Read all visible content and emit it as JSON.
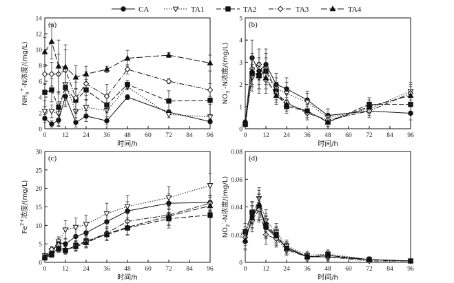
{
  "legend": [
    {
      "name": "CA",
      "marker": "circle",
      "fill": "#111111",
      "dash": ""
    },
    {
      "name": "TA1",
      "marker": "triangle-down",
      "fill": "#ffffff",
      "dash": "1.5,2"
    },
    {
      "name": "TA2",
      "marker": "square",
      "fill": "#111111",
      "dash": "7,3"
    },
    {
      "name": "TA3",
      "marker": "diamond",
      "fill": "#ffffff",
      "dash": "7,2,1.5,2"
    },
    {
      "name": "TA4",
      "marker": "triangle-up",
      "fill": "#111111",
      "dash": "9,3"
    }
  ],
  "chart_data": [
    {
      "type": "line",
      "panel_label": "(a)",
      "xlabel": "时间/h",
      "ylabel": "NH4+-N浓度/(mg/L)",
      "ylabel_parts": {
        "a": "NH",
        "sub": "4",
        "sup": "+",
        "b": "-N浓度/(mg/L)"
      },
      "xlim": [
        0,
        96
      ],
      "ylim": [
        0,
        14
      ],
      "xticks": [
        0,
        12,
        24,
        36,
        48,
        60,
        72,
        84,
        96
      ],
      "yticks": [
        0,
        2,
        4,
        6,
        8,
        10,
        12,
        14
      ],
      "x": [
        0,
        4,
        8,
        12,
        18,
        24,
        36,
        48,
        72,
        96
      ],
      "series": [
        {
          "name": "CA",
          "values": [
            1.3,
            0.6,
            1.1,
            4.1,
            0.8,
            1.6,
            1.0,
            4.0,
            2.1,
            0.9
          ],
          "err": [
            0.5,
            0.4,
            0.8,
            1.3,
            0.6,
            0.7,
            0.5,
            0.3,
            0.3,
            0.2
          ]
        },
        {
          "name": "TA1",
          "values": [
            2.2,
            2.2,
            1.9,
            5.6,
            2.2,
            2.7,
            2.3,
            5.3,
            1.8,
            1.5
          ],
          "err": [
            0.6,
            0.8,
            1.5,
            2.0,
            1.2,
            1.0,
            0.8,
            0.4,
            0.4,
            0.3
          ]
        },
        {
          "name": "TA2",
          "values": [
            4.6,
            4.9,
            2.7,
            5.2,
            3.6,
            4.9,
            3.0,
            5.6,
            3.5,
            3.6
          ],
          "err": [
            1.0,
            1.5,
            2.0,
            2.2,
            1.5,
            1.3,
            1.0,
            0.5,
            1.3,
            0.5
          ]
        },
        {
          "name": "TA3",
          "values": [
            6.9,
            6.9,
            6.9,
            7.4,
            3.9,
            5.7,
            4.1,
            7.5,
            6.0,
            4.9
          ],
          "err": [
            1.2,
            1.5,
            2.5,
            2.6,
            2.0,
            1.5,
            1.5,
            0.6,
            0.3,
            0.8
          ]
        },
        {
          "name": "TA4",
          "values": [
            9.7,
            11.0,
            7.9,
            7.8,
            6.5,
            6.9,
            7.5,
            8.9,
            9.3,
            8.3
          ],
          "err": [
            1.8,
            2.2,
            3.3,
            2.8,
            1.5,
            1.0,
            0.4,
            1.0,
            0.3,
            1.0
          ]
        }
      ]
    },
    {
      "type": "line",
      "panel_label": "(b)",
      "xlabel": "时间/h",
      "ylabel": "NO3--N浓度/(mg/L)",
      "ylabel_parts": {
        "a": "NO",
        "sub": "3",
        "sup": "-",
        "b": "-N浓度/(mg/L)"
      },
      "xlim": [
        0,
        96
      ],
      "ylim": [
        0,
        5
      ],
      "xticks": [
        0,
        12,
        24,
        36,
        48,
        60,
        72,
        84,
        96
      ],
      "yticks": [
        0,
        1,
        2,
        3,
        4,
        5
      ],
      "x": [
        0,
        4,
        8,
        12,
        18,
        24,
        36,
        48,
        72,
        96
      ],
      "series": [
        {
          "name": "CA",
          "values": [
            0.3,
            3.2,
            2.6,
            2.9,
            2.0,
            1.8,
            1.3,
            0.6,
            0.8,
            0.7
          ],
          "err": [
            0.1,
            0.8,
            0.6,
            0.7,
            0.5,
            0.5,
            0.4,
            0.3,
            0.2,
            0.3
          ]
        },
        {
          "name": "TA1",
          "values": [
            0.2,
            2.3,
            2.3,
            2.7,
            1.8,
            1.6,
            1.2,
            0.5,
            0.9,
            1.7
          ],
          "err": [
            0.1,
            0.6,
            0.7,
            0.7,
            0.5,
            0.5,
            0.4,
            0.2,
            0.3,
            0.4
          ]
        },
        {
          "name": "TA2",
          "values": [
            0.2,
            2.5,
            2.4,
            2.6,
            1.7,
            1.0,
            0.8,
            0.3,
            1.1,
            1.1
          ],
          "err": [
            0.1,
            0.6,
            0.6,
            0.6,
            0.4,
            0.3,
            0.3,
            0.2,
            0.3,
            0.3
          ]
        },
        {
          "name": "TA3",
          "values": [
            0.2,
            2.7,
            2.9,
            2.2,
            1.6,
            1.2,
            0.7,
            0.4,
            0.8,
            1.6
          ],
          "err": [
            0.1,
            0.7,
            0.7,
            0.6,
            0.4,
            0.4,
            0.3,
            0.2,
            0.3,
            0.4
          ]
        },
        {
          "name": "TA4",
          "values": [
            0.2,
            2.6,
            2.4,
            2.3,
            1.5,
            1.1,
            0.8,
            0.3,
            1.0,
            1.5
          ],
          "err": [
            0.1,
            0.6,
            0.6,
            0.5,
            0.4,
            0.3,
            0.3,
            0.2,
            0.3,
            0.4
          ]
        }
      ]
    },
    {
      "type": "line",
      "panel_label": "(c)",
      "xlabel": "时间/h",
      "ylabel": "Fe2+浓度/(mg/L)",
      "ylabel_parts": {
        "a": "Fe",
        "sub": "",
        "sup": "2+",
        "b": "浓度/(mg/L)"
      },
      "xlim": [
        0,
        96
      ],
      "ylim": [
        0,
        30
      ],
      "xticks": [
        0,
        12,
        24,
        36,
        48,
        60,
        72,
        84,
        96
      ],
      "yticks": [
        0,
        5,
        10,
        15,
        20,
        25,
        30
      ],
      "x": [
        0,
        4,
        8,
        12,
        18,
        24,
        36,
        48,
        72,
        96
      ],
      "series": [
        {
          "name": "CA",
          "values": [
            1.5,
            2.7,
            5.3,
            5.0,
            7.0,
            8.0,
            11.0,
            13.9,
            16.0,
            16.2
          ],
          "err": [
            0.5,
            0.8,
            1.2,
            1.5,
            2.0,
            2.0,
            2.5,
            2.5,
            2.5,
            2.0
          ]
        },
        {
          "name": "TA1",
          "values": [
            1.8,
            3.2,
            5.6,
            8.8,
            9.5,
            10.3,
            13.2,
            15.1,
            17.5,
            20.8
          ],
          "err": [
            0.6,
            0.9,
            1.3,
            2.5,
            2.5,
            2.5,
            2.8,
            3.0,
            3.0,
            3.2
          ]
        },
        {
          "name": "TA2",
          "values": [
            1.2,
            2.0,
            3.6,
            3.2,
            4.6,
            5.8,
            7.5,
            9.3,
            11.8,
            12.8
          ],
          "err": [
            0.4,
            0.6,
            0.9,
            1.0,
            1.3,
            1.5,
            1.6,
            2.0,
            2.5,
            0.8
          ]
        },
        {
          "name": "TA3",
          "values": [
            1.5,
            3.5,
            4.7,
            3.4,
            4.4,
            5.6,
            7.9,
            11.1,
            12.8,
            16.0
          ],
          "err": [
            0.5,
            0.8,
            1.0,
            1.0,
            1.3,
            1.5,
            1.8,
            2.0,
            2.5,
            2.0
          ]
        },
        {
          "name": "TA4",
          "values": [
            1.4,
            2.4,
            3.8,
            3.4,
            4.2,
            5.3,
            7.7,
            9.5,
            12.5,
            15.3
          ],
          "err": [
            0.4,
            0.6,
            0.9,
            1.0,
            1.2,
            1.4,
            1.6,
            2.0,
            2.5,
            1.5
          ]
        }
      ]
    },
    {
      "type": "line",
      "panel_label": "(d)",
      "xlabel": "时间/h",
      "ylabel": "NO2--N浓度/(mg/L)",
      "ylabel_parts": {
        "a": "NO",
        "sub": "2",
        "sup": "-",
        "b": "-N浓度/(mg/L)"
      },
      "xlim": [
        0,
        96
      ],
      "ylim": [
        0,
        0.08
      ],
      "xticks": [
        0,
        12,
        24,
        36,
        48,
        60,
        72,
        84,
        96
      ],
      "yticks": [
        0,
        0.02,
        0.04,
        0.06,
        0.08
      ],
      "x": [
        0,
        4,
        8,
        12,
        18,
        24,
        36,
        48,
        72,
        96
      ],
      "series": [
        {
          "name": "CA",
          "values": [
            0.015,
            0.033,
            0.04,
            0.025,
            0.018,
            0.011,
            0.004,
            0.004,
            0.002,
            0.001
          ],
          "err": [
            0.006,
            0.008,
            0.01,
            0.008,
            0.006,
            0.004,
            0.003,
            0.003,
            0.002,
            0.001
          ]
        },
        {
          "name": "TA1",
          "values": [
            0.02,
            0.035,
            0.046,
            0.03,
            0.022,
            0.012,
            0.005,
            0.006,
            0.002,
            0.001
          ],
          "err": [
            0.006,
            0.008,
            0.008,
            0.008,
            0.006,
            0.004,
            0.003,
            0.003,
            0.002,
            0.001
          ]
        },
        {
          "name": "TA2",
          "values": [
            0.022,
            0.036,
            0.04,
            0.027,
            0.02,
            0.01,
            0.004,
            0.005,
            0.002,
            0.001
          ],
          "err": [
            0.006,
            0.008,
            0.009,
            0.008,
            0.006,
            0.004,
            0.003,
            0.003,
            0.002,
            0.001
          ]
        },
        {
          "name": "TA3",
          "values": [
            0.018,
            0.03,
            0.038,
            0.02,
            0.017,
            0.009,
            0.004,
            0.004,
            0.001,
            0.001
          ],
          "err": [
            0.006,
            0.008,
            0.009,
            0.007,
            0.006,
            0.004,
            0.003,
            0.003,
            0.002,
            0.001
          ]
        },
        {
          "name": "TA4",
          "values": [
            0.016,
            0.032,
            0.042,
            0.026,
            0.019,
            0.01,
            0.004,
            0.005,
            0.002,
            0.001
          ],
          "err": [
            0.006,
            0.008,
            0.01,
            0.008,
            0.006,
            0.004,
            0.003,
            0.003,
            0.002,
            0.001
          ]
        }
      ]
    }
  ]
}
